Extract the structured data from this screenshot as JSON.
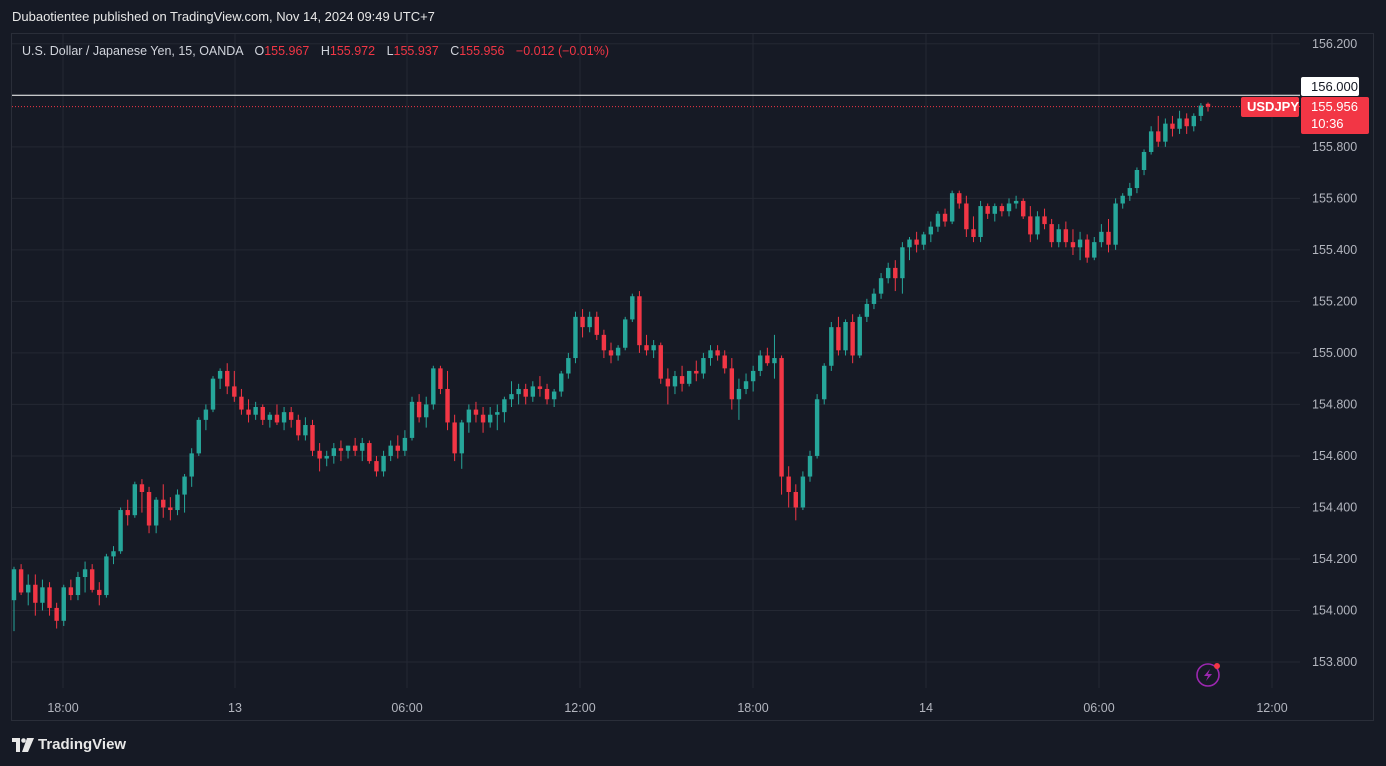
{
  "publish_line": "Dubaotientee published on TradingView.com, Nov 14, 2024 09:49 UTC+7",
  "legend": {
    "instrument": "U.S. Dollar / Japanese Yen, 15, OANDA",
    "o_key": "O",
    "o": "155.967",
    "h_key": "H",
    "h": "155.972",
    "l_key": "L",
    "l": "155.937",
    "c_key": "C",
    "c": "155.956",
    "change": "−0.012 (−0.01%)"
  },
  "footer": {
    "brand": "TradingView"
  },
  "colors": {
    "up": "#26a69a",
    "down": "#f23645",
    "grid": "#242833",
    "background": "#161a25",
    "text": "#b2b5be"
  },
  "badges": {
    "symbol": "USDJPY",
    "last_price": "155.956",
    "countdown": "10:36",
    "level_price": "156.000"
  },
  "icons": {
    "bottom_right": "lightning-bolt-icon"
  },
  "chart_data": {
    "type": "candlestick",
    "title": "U.S. Dollar / Japanese Yen, 15, OANDA",
    "ylim": [
      153.7,
      156.25
    ],
    "y_ticks": [
      "156.200",
      "155.800",
      "155.600",
      "155.400",
      "155.200",
      "155.000",
      "154.800",
      "154.600",
      "154.400",
      "154.200",
      "154.000",
      "153.800"
    ],
    "x_ticks": [
      "18:00",
      "13",
      "06:00",
      "12:00",
      "18:00",
      "14",
      "06:00",
      "12:00"
    ],
    "horizontal_level": 156.0,
    "last_price": 155.956,
    "grid": true,
    "candles": [
      [
        154.04,
        154.17,
        153.92,
        154.16
      ],
      [
        154.16,
        154.18,
        154.06,
        154.07
      ],
      [
        154.07,
        154.14,
        154.02,
        154.1
      ],
      [
        154.1,
        154.14,
        153.98,
        154.03
      ],
      [
        154.03,
        154.12,
        154.0,
        154.09
      ],
      [
        154.09,
        154.11,
        153.98,
        154.01
      ],
      [
        154.01,
        154.03,
        153.93,
        153.96
      ],
      [
        153.96,
        154.1,
        153.94,
        154.09
      ],
      [
        154.09,
        154.12,
        154.04,
        154.06
      ],
      [
        154.06,
        154.15,
        154.04,
        154.13
      ],
      [
        154.13,
        154.19,
        154.07,
        154.16
      ],
      [
        154.16,
        154.18,
        154.07,
        154.08
      ],
      [
        154.08,
        154.11,
        154.02,
        154.06
      ],
      [
        154.06,
        154.22,
        154.05,
        154.21
      ],
      [
        154.21,
        154.25,
        154.18,
        154.23
      ],
      [
        154.23,
        154.4,
        154.22,
        154.39
      ],
      [
        154.39,
        154.43,
        154.33,
        154.37
      ],
      [
        154.37,
        154.5,
        154.36,
        154.49
      ],
      [
        154.49,
        154.51,
        154.38,
        154.46
      ],
      [
        154.46,
        154.48,
        154.3,
        154.33
      ],
      [
        154.33,
        154.44,
        154.3,
        154.43
      ],
      [
        154.43,
        154.49,
        154.36,
        154.4
      ],
      [
        154.4,
        154.44,
        154.35,
        154.39
      ],
      [
        154.39,
        154.47,
        154.37,
        154.45
      ],
      [
        154.45,
        154.53,
        154.38,
        154.52
      ],
      [
        154.52,
        154.63,
        154.48,
        154.61
      ],
      [
        154.61,
        154.75,
        154.6,
        154.74
      ],
      [
        154.74,
        154.8,
        154.7,
        154.78
      ],
      [
        154.78,
        154.91,
        154.77,
        154.9
      ],
      [
        154.9,
        154.94,
        154.86,
        154.93
      ],
      [
        154.93,
        154.96,
        154.84,
        154.87
      ],
      [
        154.87,
        154.93,
        154.81,
        154.83
      ],
      [
        154.83,
        154.86,
        154.76,
        154.78
      ],
      [
        154.78,
        154.82,
        154.73,
        154.76
      ],
      [
        154.76,
        154.81,
        154.74,
        154.79
      ],
      [
        154.79,
        154.8,
        154.72,
        154.74
      ],
      [
        154.74,
        154.77,
        154.71,
        154.76
      ],
      [
        154.76,
        154.8,
        154.72,
        154.73
      ],
      [
        154.73,
        154.79,
        154.7,
        154.77
      ],
      [
        154.77,
        154.79,
        154.71,
        154.74
      ],
      [
        154.74,
        154.76,
        154.66,
        154.68
      ],
      [
        154.68,
        154.75,
        154.66,
        154.72
      ],
      [
        154.72,
        154.74,
        154.6,
        154.62
      ],
      [
        154.62,
        154.65,
        154.54,
        154.59
      ],
      [
        154.59,
        154.62,
        154.56,
        154.6
      ],
      [
        154.6,
        154.65,
        154.57,
        154.63
      ],
      [
        154.63,
        154.66,
        154.58,
        154.62
      ],
      [
        154.62,
        154.64,
        154.59,
        154.64
      ],
      [
        154.64,
        154.67,
        154.6,
        154.62
      ],
      [
        154.62,
        154.67,
        154.58,
        154.65
      ],
      [
        154.65,
        154.66,
        154.57,
        154.58
      ],
      [
        154.58,
        154.6,
        154.52,
        154.54
      ],
      [
        154.54,
        154.62,
        154.52,
        154.6
      ],
      [
        154.6,
        154.66,
        154.58,
        154.64
      ],
      [
        154.64,
        154.68,
        154.59,
        154.62
      ],
      [
        154.62,
        154.7,
        154.6,
        154.67
      ],
      [
        154.67,
        154.83,
        154.66,
        154.81
      ],
      [
        154.81,
        154.84,
        154.73,
        154.75
      ],
      [
        154.75,
        154.83,
        154.71,
        154.8
      ],
      [
        154.8,
        154.95,
        154.78,
        154.94
      ],
      [
        154.94,
        154.95,
        154.84,
        154.86
      ],
      [
        154.86,
        154.93,
        154.7,
        154.73
      ],
      [
        154.73,
        154.76,
        154.58,
        154.61
      ],
      [
        154.61,
        154.74,
        154.55,
        154.73
      ],
      [
        154.73,
        154.8,
        154.69,
        154.78
      ],
      [
        154.78,
        154.81,
        154.73,
        154.76
      ],
      [
        154.76,
        154.79,
        154.69,
        154.73
      ],
      [
        154.73,
        154.79,
        154.71,
        154.76
      ],
      [
        154.76,
        154.8,
        154.7,
        154.77
      ],
      [
        154.77,
        154.83,
        154.73,
        154.82
      ],
      [
        154.82,
        154.89,
        154.79,
        154.84
      ],
      [
        154.84,
        154.88,
        154.8,
        154.86
      ],
      [
        154.86,
        154.88,
        154.8,
        154.83
      ],
      [
        154.83,
        154.89,
        154.81,
        154.87
      ],
      [
        154.87,
        154.91,
        154.83,
        154.86
      ],
      [
        154.86,
        154.88,
        154.8,
        154.82
      ],
      [
        154.82,
        154.86,
        154.79,
        154.85
      ],
      [
        154.85,
        154.93,
        154.83,
        154.92
      ],
      [
        154.92,
        155.0,
        154.9,
        154.98
      ],
      [
        154.98,
        155.16,
        154.96,
        155.14
      ],
      [
        155.14,
        155.17,
        155.06,
        155.1
      ],
      [
        155.1,
        155.16,
        155.08,
        155.14
      ],
      [
        155.14,
        155.16,
        155.05,
        155.07
      ],
      [
        155.07,
        155.09,
        154.98,
        155.01
      ],
      [
        155.01,
        155.04,
        154.96,
        154.99
      ],
      [
        154.99,
        155.03,
        154.97,
        155.02
      ],
      [
        155.02,
        155.14,
        155.01,
        155.13
      ],
      [
        155.13,
        155.23,
        155.12,
        155.22
      ],
      [
        155.22,
        155.24,
        155.0,
        155.03
      ],
      [
        155.03,
        155.07,
        154.99,
        155.01
      ],
      [
        155.01,
        155.05,
        154.98,
        155.03
      ],
      [
        155.03,
        155.04,
        154.88,
        154.9
      ],
      [
        154.9,
        154.94,
        154.8,
        154.87
      ],
      [
        154.87,
        154.93,
        154.84,
        154.91
      ],
      [
        154.91,
        154.95,
        154.85,
        154.88
      ],
      [
        154.88,
        154.93,
        154.87,
        154.93
      ],
      [
        154.93,
        154.97,
        154.89,
        154.92
      ],
      [
        154.92,
        155.0,
        154.9,
        154.98
      ],
      [
        154.98,
        155.03,
        154.95,
        155.01
      ],
      [
        155.01,
        155.03,
        154.97,
        154.99
      ],
      [
        154.99,
        155.01,
        154.92,
        154.94
      ],
      [
        154.94,
        154.98,
        154.78,
        154.82
      ],
      [
        154.82,
        154.9,
        154.74,
        154.86
      ],
      [
        154.86,
        154.92,
        154.84,
        154.89
      ],
      [
        154.89,
        154.95,
        154.85,
        154.93
      ],
      [
        154.93,
        155.01,
        154.91,
        154.99
      ],
      [
        154.99,
        155.02,
        154.95,
        154.96
      ],
      [
        154.96,
        155.07,
        154.9,
        154.98
      ],
      [
        154.98,
        154.99,
        154.45,
        154.52
      ],
      [
        154.52,
        154.56,
        154.4,
        154.46
      ],
      [
        154.46,
        154.49,
        154.35,
        154.4
      ],
      [
        154.4,
        154.54,
        154.39,
        154.52
      ],
      [
        154.52,
        154.62,
        154.5,
        154.6
      ],
      [
        154.6,
        154.84,
        154.59,
        154.82
      ],
      [
        154.82,
        154.96,
        154.8,
        154.95
      ],
      [
        154.95,
        155.12,
        154.93,
        155.1
      ],
      [
        155.1,
        155.14,
        154.99,
        155.01
      ],
      [
        155.01,
        155.13,
        154.99,
        155.12
      ],
      [
        155.12,
        155.15,
        154.96,
        154.99
      ],
      [
        154.99,
        155.15,
        154.98,
        155.14
      ],
      [
        155.14,
        155.21,
        155.12,
        155.19
      ],
      [
        155.19,
        155.25,
        155.17,
        155.23
      ],
      [
        155.23,
        155.31,
        155.21,
        155.29
      ],
      [
        155.29,
        155.35,
        155.27,
        155.33
      ],
      [
        155.33,
        155.36,
        155.24,
        155.29
      ],
      [
        155.29,
        155.43,
        155.23,
        155.41
      ],
      [
        155.41,
        155.45,
        155.36,
        155.44
      ],
      [
        155.44,
        155.47,
        155.39,
        155.42
      ],
      [
        155.42,
        155.47,
        155.4,
        155.46
      ],
      [
        155.46,
        155.51,
        155.43,
        155.49
      ],
      [
        155.49,
        155.55,
        155.47,
        155.54
      ],
      [
        155.54,
        155.56,
        155.49,
        155.51
      ],
      [
        155.51,
        155.63,
        155.5,
        155.62
      ],
      [
        155.62,
        155.63,
        155.56,
        155.58
      ],
      [
        155.58,
        155.61,
        155.45,
        155.48
      ],
      [
        155.48,
        155.53,
        155.43,
        155.45
      ],
      [
        155.45,
        155.59,
        155.43,
        155.57
      ],
      [
        155.57,
        155.58,
        155.52,
        155.54
      ],
      [
        155.54,
        155.58,
        155.51,
        155.57
      ],
      [
        155.57,
        155.58,
        155.53,
        155.55
      ],
      [
        155.55,
        155.6,
        155.53,
        155.58
      ],
      [
        155.58,
        155.61,
        155.56,
        155.59
      ],
      [
        155.59,
        155.6,
        155.52,
        155.53
      ],
      [
        155.53,
        155.57,
        155.43,
        155.46
      ],
      [
        155.46,
        155.55,
        155.44,
        155.53
      ],
      [
        155.53,
        155.56,
        155.48,
        155.5
      ],
      [
        155.5,
        155.52,
        155.41,
        155.43
      ],
      [
        155.43,
        155.5,
        155.41,
        155.48
      ],
      [
        155.48,
        155.51,
        155.41,
        155.43
      ],
      [
        155.43,
        155.48,
        155.38,
        155.41
      ],
      [
        155.41,
        155.47,
        155.36,
        155.44
      ],
      [
        155.44,
        155.46,
        155.35,
        155.37
      ],
      [
        155.37,
        155.45,
        155.36,
        155.43
      ],
      [
        155.43,
        155.5,
        155.41,
        155.47
      ],
      [
        155.47,
        155.52,
        155.39,
        155.42
      ],
      [
        155.42,
        155.6,
        155.4,
        155.58
      ],
      [
        155.58,
        155.62,
        155.56,
        155.61
      ],
      [
        155.61,
        155.66,
        155.59,
        155.64
      ],
      [
        155.64,
        155.72,
        155.62,
        155.71
      ],
      [
        155.71,
        155.79,
        155.69,
        155.78
      ],
      [
        155.78,
        155.88,
        155.77,
        155.86
      ],
      [
        155.86,
        155.92,
        155.8,
        155.82
      ],
      [
        155.82,
        155.91,
        155.8,
        155.89
      ],
      [
        155.89,
        155.92,
        155.84,
        155.87
      ],
      [
        155.87,
        155.94,
        155.85,
        155.91
      ],
      [
        155.91,
        155.93,
        155.85,
        155.88
      ],
      [
        155.88,
        155.93,
        155.86,
        155.92
      ],
      [
        155.92,
        155.97,
        155.9,
        155.96
      ],
      [
        155.967,
        155.972,
        155.937,
        155.956
      ]
    ]
  }
}
